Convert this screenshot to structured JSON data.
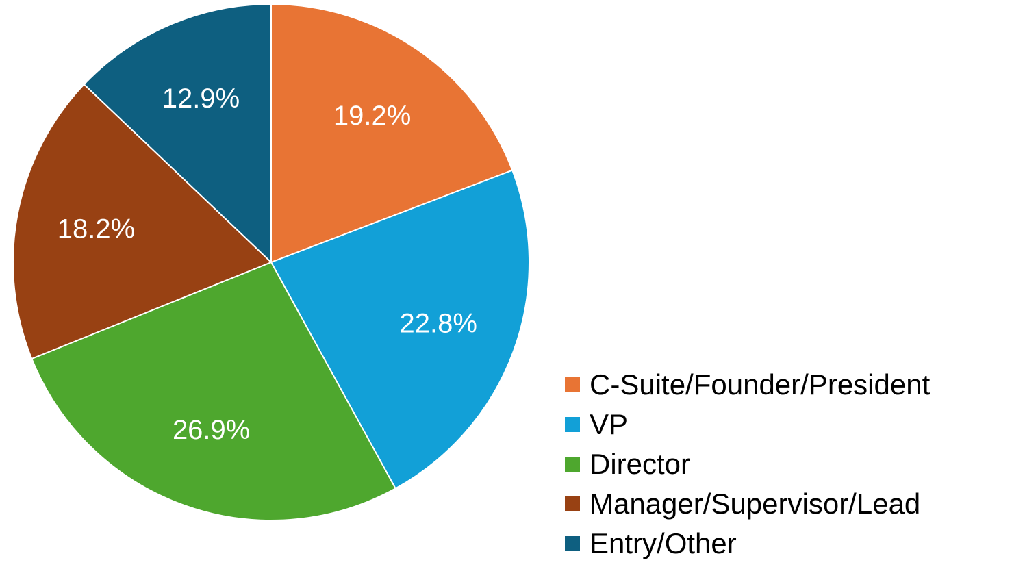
{
  "chart_data": {
    "type": "pie",
    "categories": [
      "C-Suite/Founder/President",
      "VP",
      "Director",
      "Manager/Supervisor/Lead",
      "Entry/Other"
    ],
    "values": [
      19.2,
      22.8,
      26.9,
      18.2,
      12.9
    ],
    "data_labels": [
      "19.2%",
      "22.8%",
      "26.9%",
      "18.2%",
      "12.9%"
    ],
    "colors": [
      "#E87434",
      "#12A0D7",
      "#4EA72E",
      "#984113",
      "#0E5F80"
    ],
    "start_angle": "12 o'clock",
    "direction": "clockwise",
    "legend_position": "bottom-right",
    "title": ""
  }
}
